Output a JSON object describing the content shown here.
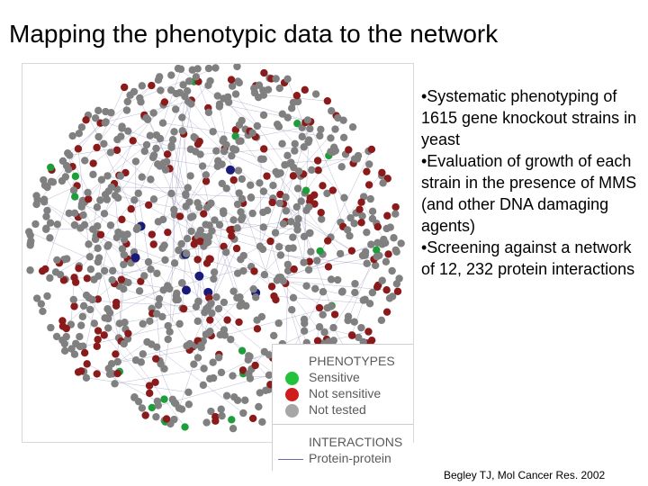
{
  "slide": {
    "title": "Mapping the phenotypic data to the network",
    "bullets": [
      "•Systematic phenotyping of 1615 gene knockout strains in yeast",
      "•Evaluation of growth of each strain in the presence of MMS (and other DNA damaging agents)",
      "•Screening against a network of 12, 232 protein interactions"
    ],
    "citation": "Begley TJ, Mol Cancer Res. 2002"
  },
  "legend": {
    "phenotypes_header": "PHENOTYPES",
    "items": [
      {
        "label": "Sensitive",
        "color": "#22c23a"
      },
      {
        "label": "Not sensitive",
        "color": "#d01c1c"
      },
      {
        "label": "Not tested",
        "color": "#a6a6a6"
      }
    ],
    "interactions_header": "INTERACTIONS",
    "interaction_label": "Protein-protein"
  },
  "network_colors": {
    "not_tested": "#808080",
    "not_sensitive": "#8b1a1a",
    "sensitive": "#1e9e3a",
    "core": "#1a1a7a",
    "edge": "#8a8ab8"
  }
}
